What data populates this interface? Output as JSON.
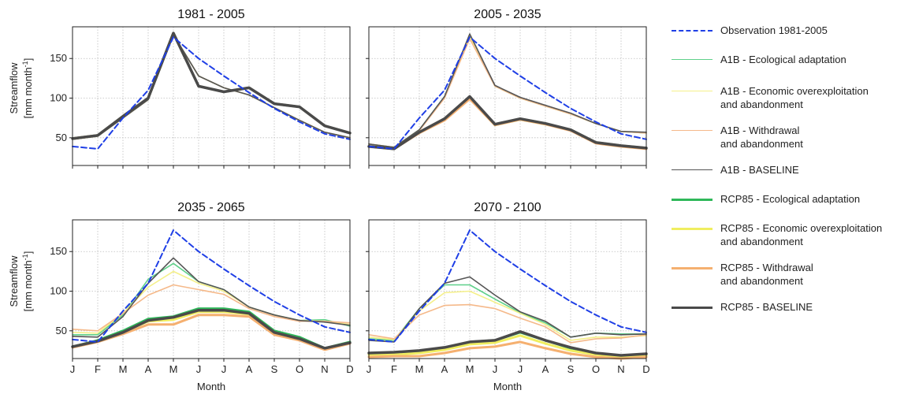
{
  "figure": {
    "y_axis_label_line1": "Streamflow",
    "y_axis_label_line2": "[mm month",
    "y_axis_label_sup": "-1",
    "y_axis_label_close": "]",
    "x_axis_label": "Month"
  },
  "legend": {
    "items": [
      {
        "key": "obs",
        "label": "Observation 1981-2005"
      },
      {
        "key": "a1b_eco",
        "label": "A1B - Ecological adaptation"
      },
      {
        "key": "a1b_econ",
        "label": "A1B - Economic overexploitation\nand abandonment"
      },
      {
        "key": "a1b_with",
        "label": "A1B - Withdrawal\nand abandonment"
      },
      {
        "key": "a1b_base",
        "label": "A1B - BASELINE"
      },
      {
        "key": "rcp_eco",
        "label": "RCP85 - Ecological adaptation"
      },
      {
        "key": "rcp_econ",
        "label": "RCP85 - Economic overexploitation\nand abandonment"
      },
      {
        "key": "rcp_with",
        "label": "RCP85 - Withdrawal\nand abandonment"
      },
      {
        "key": "rcp_base",
        "label": "RCP85 - BASELINE"
      }
    ]
  },
  "chart_data": {
    "type": "line",
    "categories": [
      "J",
      "F",
      "M",
      "A",
      "M",
      "J",
      "J",
      "A",
      "S",
      "O",
      "N",
      "D"
    ],
    "ylim": [
      15,
      190
    ],
    "yticks": [
      50,
      100,
      150
    ],
    "grid": true,
    "legend_placement": "right",
    "series_styles": {
      "obs": {
        "color": "#1f3fe6",
        "dash": true,
        "width": 2
      },
      "a1b_eco": {
        "color": "#5fd08a",
        "width": 1.6
      },
      "a1b_econ": {
        "color": "#f5f08a",
        "width": 1.6
      },
      "a1b_with": {
        "color": "#f5b98a",
        "width": 1.6
      },
      "a1b_base": {
        "color": "#555555",
        "width": 1.6
      },
      "rcp_eco": {
        "color": "#2fb85a",
        "width": 3
      },
      "rcp_econ": {
        "color": "#f0ee60",
        "width": 3
      },
      "rcp_with": {
        "color": "#f5b070",
        "width": 3
      },
      "rcp_base": {
        "color": "#4a4a4a",
        "width": 3.5
      }
    },
    "panels": [
      {
        "title": "1981 - 2005",
        "series": [
          {
            "key": "a1b_eco",
            "values": [
              48,
              52,
              75,
              98,
              180,
              128,
              113,
              104,
              88,
              72,
              57,
              50
            ]
          },
          {
            "key": "a1b_econ",
            "values": [
              48,
              52,
              75,
              98,
              180,
              128,
              113,
              104,
              88,
              72,
              57,
              50
            ]
          },
          {
            "key": "a1b_with",
            "values": [
              48,
              52,
              75,
              98,
              180,
              128,
              113,
              104,
              88,
              72,
              57,
              50
            ]
          },
          {
            "key": "a1b_base",
            "values": [
              48,
              52,
              75,
              98,
              180,
              128,
              113,
              104,
              88,
              72,
              57,
              50
            ]
          },
          {
            "key": "rcp_eco",
            "values": [
              49,
              53,
              77,
              100,
              182,
              115,
              108,
              113,
              93,
              89,
              65,
              56
            ]
          },
          {
            "key": "rcp_econ",
            "values": [
              49,
              53,
              77,
              100,
              182,
              115,
              108,
              113,
              93,
              89,
              65,
              56
            ]
          },
          {
            "key": "rcp_with",
            "values": [
              49,
              53,
              77,
              100,
              182,
              115,
              108,
              113,
              93,
              89,
              65,
              56
            ]
          },
          {
            "key": "rcp_base",
            "values": [
              49,
              53,
              77,
              100,
              182,
              115,
              108,
              113,
              93,
              89,
              65,
              56
            ]
          },
          {
            "key": "obs",
            "values": [
              39,
              36,
              75,
              110,
              177,
              150,
              128,
              107,
              87,
              70,
              55,
              48
            ]
          }
        ]
      },
      {
        "title": "2005 - 2035",
        "series": [
          {
            "key": "a1b_eco",
            "values": [
              42,
              38,
              60,
              102,
              180,
              115,
              100,
              90,
              80,
              68,
              58,
              56
            ]
          },
          {
            "key": "a1b_econ",
            "values": [
              42,
              38,
              60,
              101,
              178,
              115,
              100,
              90,
              80,
              68,
              58,
              56
            ]
          },
          {
            "key": "a1b_with",
            "values": [
              42,
              38,
              59,
              100,
              175,
              115,
              100,
              90,
              80,
              68,
              58,
              56
            ]
          },
          {
            "key": "a1b_base",
            "values": [
              42,
              38,
              60,
              102,
              181,
              116,
              101,
              91,
              81,
              68,
              58,
              57
            ]
          },
          {
            "key": "rcp_eco",
            "values": [
              39,
              36,
              57,
              74,
              101,
              67,
              74,
              68,
              60,
              44,
              40,
              37
            ]
          },
          {
            "key": "rcp_econ",
            "values": [
              39,
              36,
              57,
              73,
              100,
              66,
              73,
              67,
              60,
              44,
              40,
              37
            ]
          },
          {
            "key": "rcp_with",
            "values": [
              39,
              36,
              56,
              72,
              99,
              66,
              73,
              67,
              59,
              43,
              39,
              36
            ]
          },
          {
            "key": "rcp_base",
            "values": [
              39,
              36,
              57,
              74,
              102,
              67,
              74,
              68,
              60,
              44,
              40,
              37
            ]
          },
          {
            "key": "obs",
            "values": [
              39,
              36,
              75,
              110,
              177,
              150,
              128,
              107,
              87,
              70,
              55,
              48
            ]
          }
        ]
      },
      {
        "title": "2035 - 2065",
        "series": [
          {
            "key": "a1b_eco",
            "values": [
              45,
              45,
              70,
              115,
              135,
              112,
              102,
              80,
              70,
              63,
              64,
              56
            ]
          },
          {
            "key": "a1b_econ",
            "values": [
              48,
              47,
              72,
              105,
              125,
              110,
              100,
              80,
              70,
              63,
              62,
              58
            ]
          },
          {
            "key": "a1b_with",
            "values": [
              52,
              50,
              72,
              95,
              108,
              102,
              96,
              78,
              68,
              62,
              62,
              60
            ]
          },
          {
            "key": "a1b_base",
            "values": [
              43,
              42,
              68,
              110,
              142,
              112,
              102,
              80,
              70,
              63,
              61,
              57
            ]
          },
          {
            "key": "rcp_eco",
            "values": [
              30,
              38,
              50,
              65,
              68,
              78,
              78,
              74,
              50,
              42,
              28,
              36
            ]
          },
          {
            "key": "rcp_econ",
            "values": [
              30,
              37,
              48,
              62,
              64,
              74,
              74,
              71,
              48,
              40,
              27,
              35
            ]
          },
          {
            "key": "rcp_with",
            "values": [
              29,
              36,
              46,
              58,
              58,
              70,
              70,
              68,
              45,
              38,
              26,
              34
            ]
          },
          {
            "key": "rcp_base",
            "values": [
              30,
              37,
              48,
              63,
              67,
              76,
              76,
              72,
              48,
              40,
              28,
              35
            ]
          },
          {
            "key": "obs",
            "values": [
              39,
              36,
              75,
              110,
              177,
              150,
              128,
              107,
              87,
              70,
              55,
              48
            ]
          }
        ]
      },
      {
        "title": "2070 - 2100",
        "series": [
          {
            "key": "a1b_eco",
            "values": [
              40,
              38,
              78,
              108,
              108,
              90,
              73,
              60,
              42,
              47,
              46,
              46
            ]
          },
          {
            "key": "a1b_econ",
            "values": [
              42,
              39,
              75,
              98,
              100,
              86,
              72,
              58,
              38,
              42,
              42,
              44
            ]
          },
          {
            "key": "a1b_with",
            "values": [
              45,
              40,
              70,
              82,
              83,
              78,
              66,
              55,
              35,
              40,
              41,
              45
            ]
          },
          {
            "key": "a1b_base",
            "values": [
              38,
              36,
              78,
              110,
              118,
              95,
              74,
              62,
              42,
              47,
              45,
              46
            ]
          },
          {
            "key": "rcp_eco",
            "values": [
              22,
              22,
              24,
              28,
              36,
              38,
              48,
              38,
              28,
              22,
              18,
              20
            ]
          },
          {
            "key": "rcp_econ",
            "values": [
              20,
              20,
              22,
              26,
              33,
              35,
              44,
              34,
              25,
              20,
              17,
              19
            ]
          },
          {
            "key": "rcp_with",
            "values": [
              17,
              18,
              18,
              22,
              28,
              30,
              36,
              28,
              21,
              17,
              15,
              17
            ]
          },
          {
            "key": "rcp_base",
            "values": [
              22,
              23,
              25,
              29,
              36,
              38,
              49,
              38,
              29,
              22,
              19,
              21
            ]
          },
          {
            "key": "obs",
            "values": [
              39,
              36,
              75,
              110,
              177,
              150,
              128,
              107,
              87,
              70,
              55,
              48
            ]
          }
        ]
      }
    ]
  }
}
